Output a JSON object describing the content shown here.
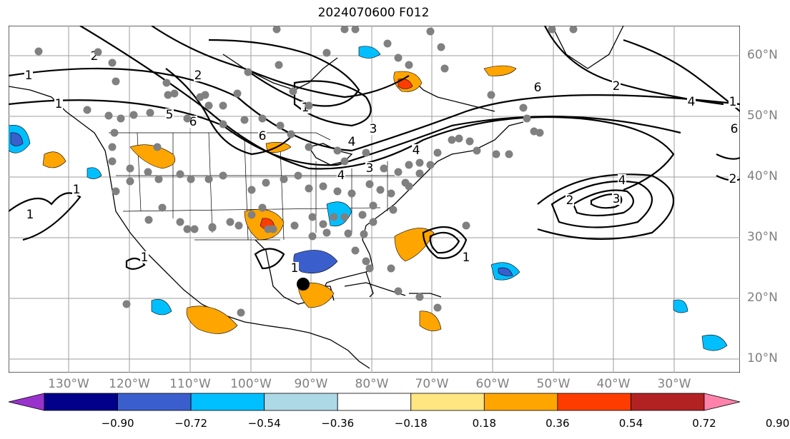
{
  "title": "2024070600 F012",
  "lon_labels": [
    "130°W",
    "120°W",
    "110°W",
    "100°W",
    "90°W",
    "80°W",
    "70°W",
    "60°W",
    "50°W",
    "40°W",
    "30°W"
  ],
  "lat_labels": [
    "60°N",
    "50°N",
    "40°N",
    "30°N",
    "20°N",
    "10°N"
  ],
  "colorbar": {
    "ticks": [
      "−0.90",
      "−0.72",
      "−0.54",
      "−0.36",
      "−0.18",
      "0.18",
      "0.36",
      "0.54",
      "0.72",
      "0.90"
    ],
    "colors": [
      "#9932cc",
      "#00008b",
      "#3a5fcd",
      "#00bfff",
      "#add8e6",
      "#ffffff",
      "#ffe680",
      "#ffa500",
      "#ff3c00",
      "#b22222",
      "#ff82ab"
    ]
  },
  "contour_labels": [
    "1",
    "1",
    "2",
    "2",
    "5",
    "6",
    "1",
    "3",
    "4",
    "4",
    "3",
    "4",
    "6",
    "1",
    "2",
    "6",
    "2",
    "4",
    "3",
    "2",
    "4",
    "6",
    "1",
    "1",
    "1",
    "1",
    "1"
  ],
  "markers": {
    "storm_center": "black-dot"
  }
}
